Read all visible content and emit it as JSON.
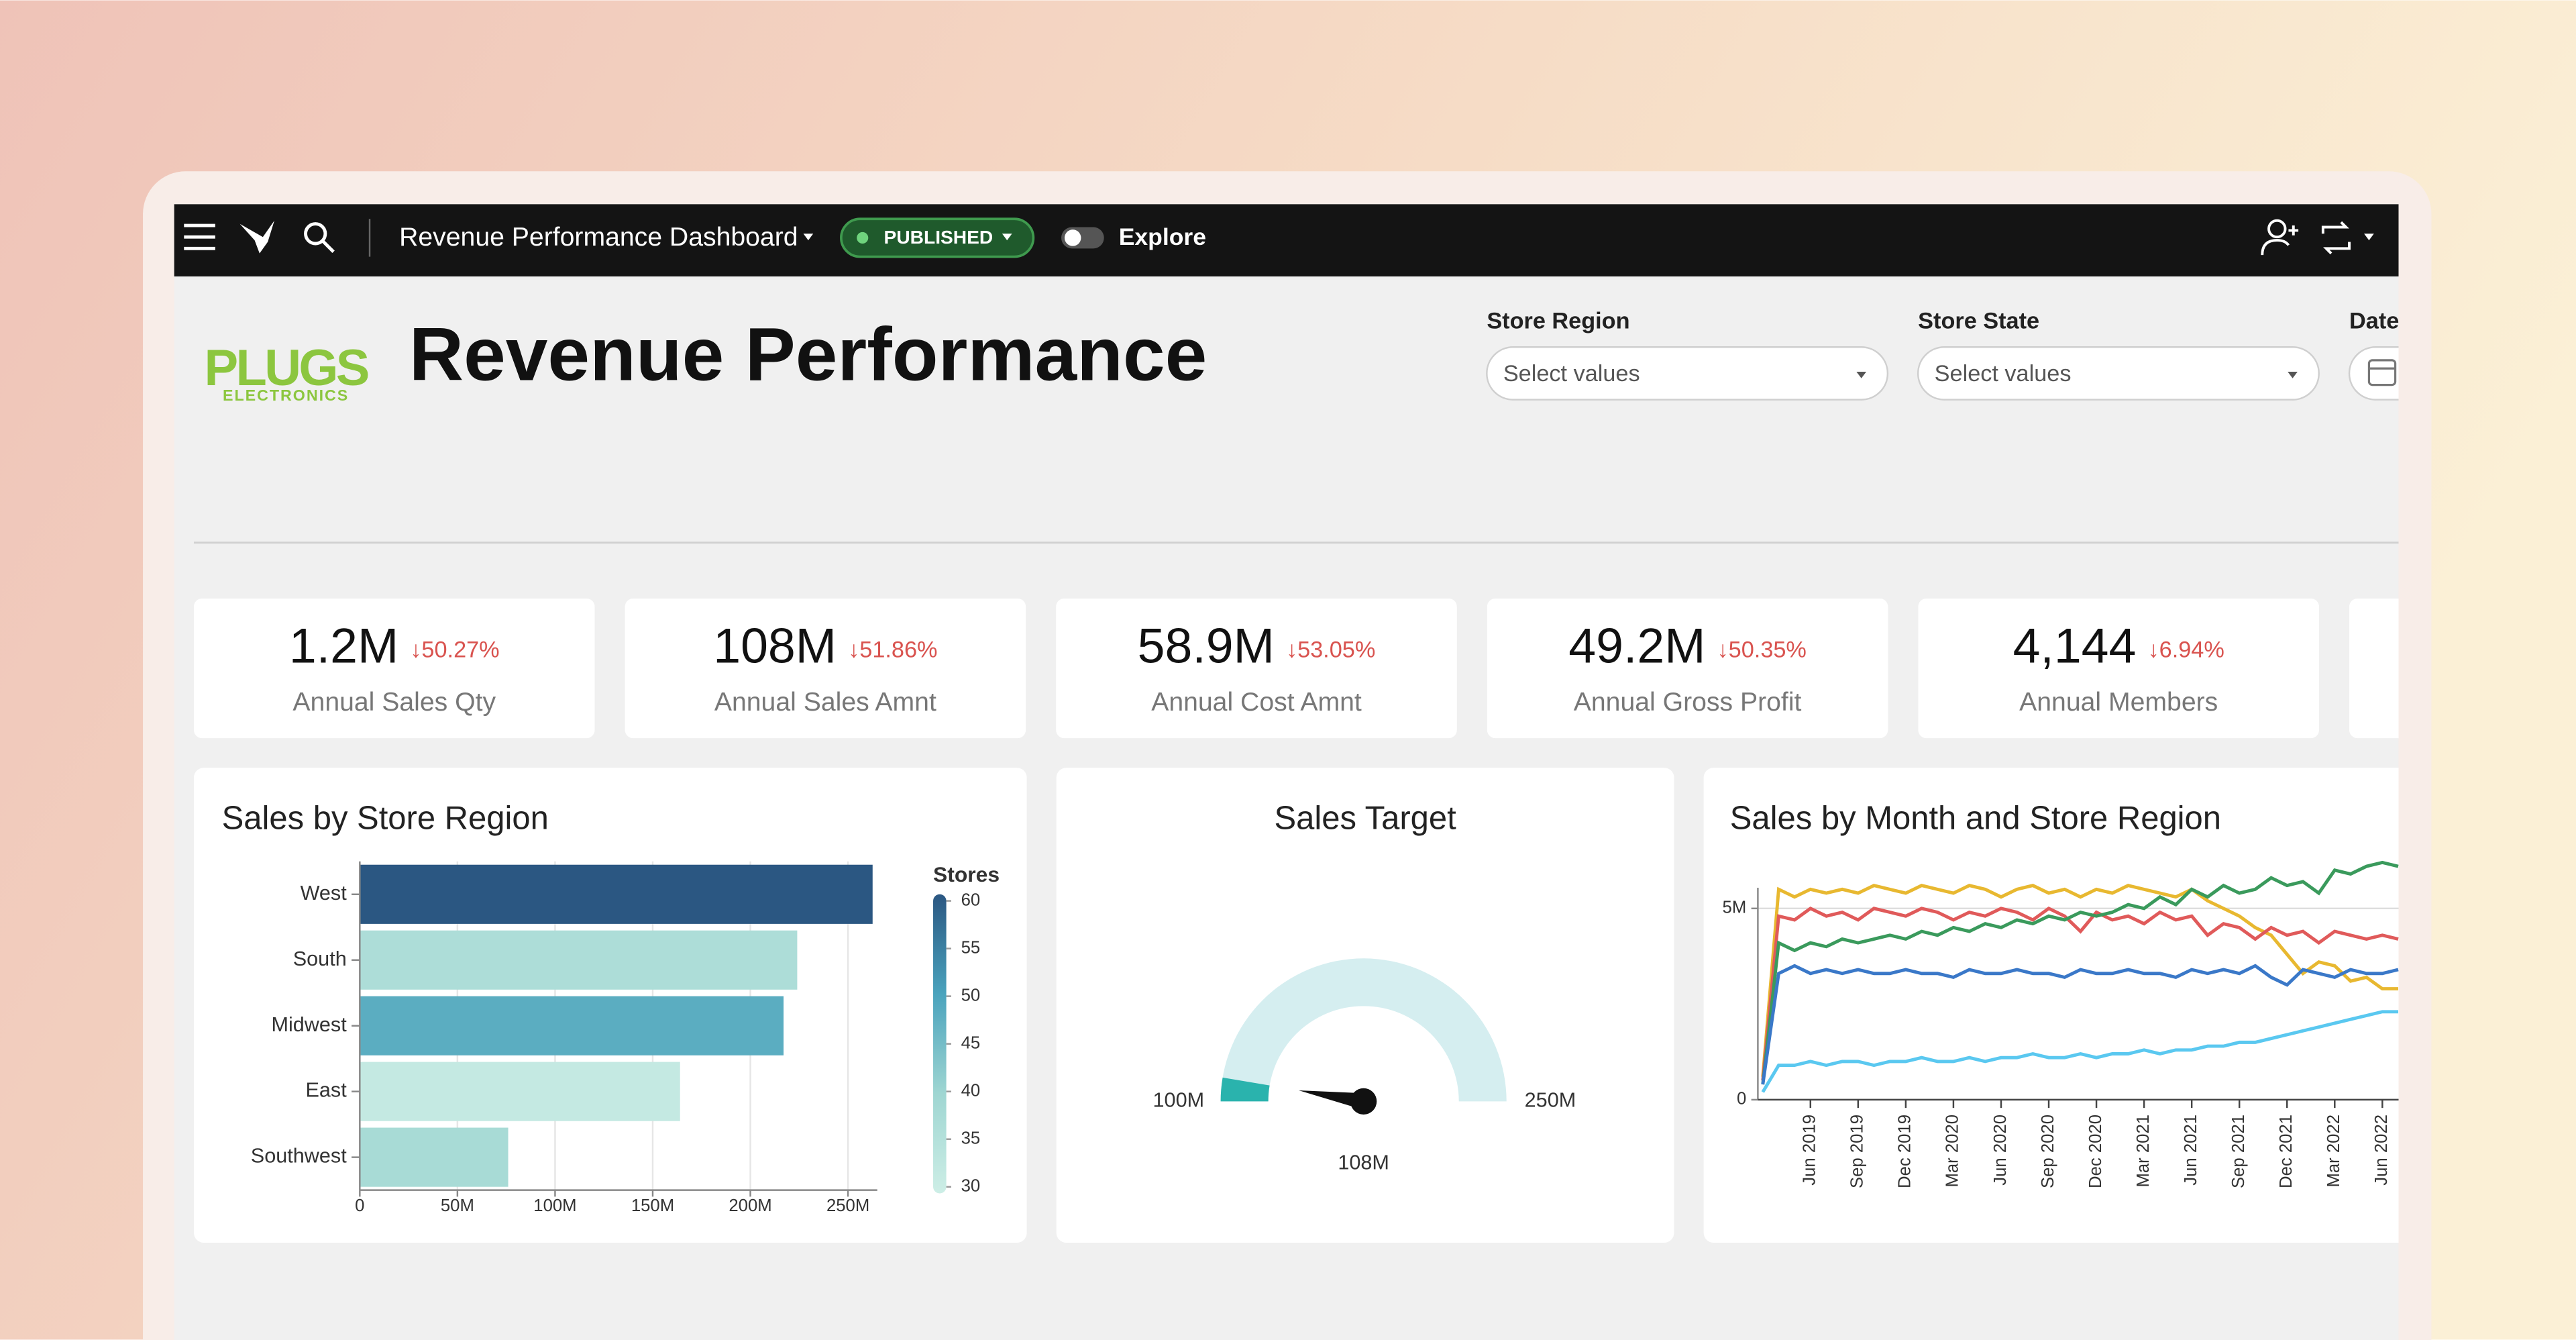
{
  "toolbar": {
    "title": "Revenue Performance Dashboard",
    "status": "PUBLISHED",
    "explore": "Explore"
  },
  "header": {
    "logo_line1": "PLUGS",
    "logo_line2": "ELECTRONICS",
    "title": "Revenue Performance"
  },
  "filters": [
    {
      "label": "Store Region",
      "placeholder": "Select values"
    },
    {
      "label": "Store State",
      "placeholder": "Select values"
    },
    {
      "label": "Date"
    }
  ],
  "kpis": [
    {
      "value": "1.2M",
      "change": "↓50.27%",
      "label": "Annual Sales Qty"
    },
    {
      "value": "108M",
      "change": "↓51.86%",
      "label": "Annual Sales Amnt"
    },
    {
      "value": "58.9M",
      "change": "↓53.05%",
      "label": "Annual Cost Amnt"
    },
    {
      "value": "49.2M",
      "change": "↓50.35%",
      "label": "Annual Gross Profit"
    },
    {
      "value": "4,144",
      "change": "↓6.94%",
      "label": "Annual Members"
    }
  ],
  "chart_data": [
    {
      "type": "bar",
      "orientation": "horizontal",
      "title": "Sales by Store Region",
      "categories": [
        "West",
        "South",
        "Midwest",
        "East",
        "Southwest"
      ],
      "values": [
        262.6,
        224,
        217,
        164,
        76
      ],
      "color_values": [
        60,
        37,
        48,
        32,
        38
      ],
      "color_title": "Stores",
      "colorscale": [
        "#cdeee6",
        "#9fd6d2",
        "#4aa3bd",
        "#2b5782"
      ],
      "clim": [
        30,
        60
      ],
      "cticks": [
        30,
        35,
        40,
        45,
        50,
        55,
        60
      ],
      "xlim": [
        0,
        265
      ],
      "xticks": [
        0,
        {
          "value": 50,
          "label": "50M"
        },
        {
          "value": 100,
          "label": "100M"
        },
        {
          "value": 150,
          "label": "150M"
        },
        {
          "value": 200,
          "label": "200M"
        },
        {
          "value": 250,
          "label": "250M"
        }
      ],
      "grid": true
    },
    {
      "type": "gauge",
      "title": "Sales Target",
      "min": {
        "value": 100,
        "label": "100M"
      },
      "max": {
        "value": 250,
        "label": "250M"
      },
      "value": 108,
      "value_label": "108M",
      "color": "#2ab3ad",
      "track_color": "#d5eef0"
    },
    {
      "type": "line",
      "title": "Sales by Month and Store Region",
      "categories": [
        null,
        null,
        null,
        "Jun 2019",
        null,
        null,
        "Sep 2019",
        null,
        null,
        "Dec 2019",
        null,
        null,
        "Mar 2020",
        null,
        null,
        "Jun 2020",
        null,
        null,
        "Sep 2020",
        null,
        null,
        "Dec 2020",
        null,
        null,
        "Mar 2021",
        null,
        null,
        "Jun 2021",
        null,
        null,
        "Sep 2021",
        null,
        null,
        "Dec 2021",
        null,
        null,
        "Mar 2022",
        null,
        null,
        "Jun 2022",
        null
      ],
      "series": [
        {
          "color": "#e8b830",
          "values": [
            0.6,
            5.5,
            5.3,
            5.5,
            5.4,
            5.5,
            5.4,
            5.6,
            5.5,
            5.4,
            5.6,
            5.5,
            5.4,
            5.6,
            5.5,
            5.3,
            5.5,
            5.6,
            5.4,
            5.5,
            5.3,
            5.5,
            5.4,
            5.6,
            5.5,
            5.4,
            5.3,
            5.5,
            5.2,
            5.0,
            4.8,
            4.5,
            4.3,
            3.8,
            3.3,
            3.6,
            3.5,
            3.1,
            3.2,
            2.9,
            2.9
          ]
        },
        {
          "color": "#e05a5a",
          "values": [
            0.5,
            4.8,
            4.7,
            5.0,
            4.8,
            4.9,
            4.7,
            5.0,
            4.9,
            4.8,
            5.0,
            4.9,
            4.7,
            4.9,
            4.8,
            5.0,
            4.9,
            4.7,
            5.0,
            4.8,
            4.4,
            4.9,
            4.7,
            4.8,
            4.6,
            4.9,
            4.7,
            4.8,
            4.3,
            4.6,
            4.5,
            4.2,
            4.5,
            4.3,
            4.4,
            4.1,
            4.4,
            4.3,
            4.2,
            4.3,
            4.2
          ]
        },
        {
          "color": "#3a9a5c",
          "values": [
            0.4,
            4.1,
            3.9,
            4.1,
            4.0,
            4.2,
            4.1,
            4.2,
            4.3,
            4.2,
            4.4,
            4.3,
            4.5,
            4.4,
            4.6,
            4.5,
            4.7,
            4.6,
            4.8,
            4.7,
            4.9,
            4.8,
            4.9,
            5.1,
            5.0,
            5.3,
            5.1,
            5.5,
            5.3,
            5.6,
            5.4,
            5.5,
            5.8,
            5.6,
            5.7,
            5.4,
            6.0,
            5.9,
            6.1,
            6.2,
            6.1
          ]
        },
        {
          "color": "#3a78c8",
          "values": [
            0.4,
            3.3,
            3.5,
            3.3,
            3.4,
            3.3,
            3.4,
            3.3,
            3.3,
            3.4,
            3.3,
            3.3,
            3.2,
            3.4,
            3.3,
            3.3,
            3.4,
            3.3,
            3.3,
            3.2,
            3.4,
            3.3,
            3.3,
            3.4,
            3.3,
            3.3,
            3.2,
            3.4,
            3.3,
            3.4,
            3.3,
            3.5,
            3.2,
            3.0,
            3.4,
            3.3,
            3.2,
            3.4,
            3.3,
            3.3,
            3.4
          ]
        },
        {
          "color": "#5ac8f0",
          "values": [
            0.2,
            0.9,
            0.9,
            1.0,
            0.9,
            1.0,
            1.0,
            0.9,
            1.0,
            1.0,
            1.1,
            1.0,
            1.0,
            1.1,
            1.0,
            1.1,
            1.1,
            1.2,
            1.1,
            1.1,
            1.2,
            1.1,
            1.2,
            1.2,
            1.3,
            1.2,
            1.3,
            1.3,
            1.4,
            1.4,
            1.5,
            1.5,
            1.6,
            1.7,
            1.8,
            1.9,
            2.0,
            2.1,
            2.2,
            2.3,
            2.3
          ]
        }
      ],
      "ylim": [
        0,
        6.4
      ],
      "yticks": [
        0,
        {
          "value": 5,
          "label": "5M"
        }
      ],
      "grid": true
    }
  ]
}
